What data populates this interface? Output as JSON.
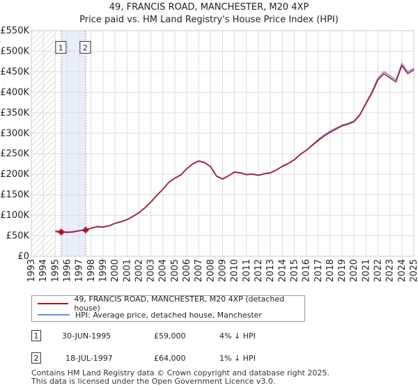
{
  "chart_data": {
    "type": "line",
    "title": "49, FRANCIS ROAD, MANCHESTER, M20 4XP",
    "subtitle": "Price paid vs. HM Land Registry's House Price Index (HPI)",
    "xlim": [
      1993,
      2025
    ],
    "ylim": [
      0,
      550000
    ],
    "y_ticks": [
      0,
      50000,
      100000,
      150000,
      200000,
      250000,
      300000,
      350000,
      400000,
      450000,
      500000,
      550000
    ],
    "y_tick_labels": [
      "£0",
      "£50K",
      "£100K",
      "£150K",
      "£200K",
      "£250K",
      "£300K",
      "£350K",
      "£400K",
      "£450K",
      "£500K",
      "£550K"
    ],
    "x_ticks": [
      1993,
      1994,
      1995,
      1996,
      1997,
      1998,
      1999,
      2000,
      2001,
      2002,
      2003,
      2004,
      2005,
      2006,
      2007,
      2008,
      2009,
      2010,
      2011,
      2012,
      2013,
      2014,
      2015,
      2016,
      2017,
      2018,
      2019,
      2020,
      2021,
      2022,
      2023,
      2024,
      2025
    ],
    "grid": true,
    "hatched_until": 1995.0,
    "shaded_range": [
      1995.5,
      1997.54
    ],
    "series": [
      {
        "name": "49, FRANCIS ROAD, MANCHESTER, M20 4XP (detached house)",
        "color": "#b0131f",
        "x": [
          1995.0,
          1995.5,
          1996.0,
          1996.5,
          1997.0,
          1997.54,
          1998.0,
          1998.5,
          1999.0,
          1999.5,
          2000.0,
          2000.5,
          2001.0,
          2001.5,
          2002.0,
          2002.5,
          2003.0,
          2003.5,
          2004.0,
          2004.5,
          2005.0,
          2005.5,
          2006.0,
          2006.5,
          2007.0,
          2007.5,
          2008.0,
          2008.5,
          2009.0,
          2009.5,
          2010.0,
          2010.5,
          2011.0,
          2011.5,
          2012.0,
          2012.5,
          2013.0,
          2013.5,
          2014.0,
          2014.5,
          2015.0,
          2015.5,
          2016.0,
          2016.5,
          2017.0,
          2017.5,
          2018.0,
          2018.5,
          2019.0,
          2019.5,
          2020.0,
          2020.5,
          2021.0,
          2021.5,
          2022.0,
          2022.5,
          2023.0,
          2023.5,
          2024.0,
          2024.5,
          2025.0
        ],
        "y": [
          60000,
          59000,
          58000,
          59000,
          62000,
          64000,
          68000,
          72000,
          71000,
          74000,
          80000,
          84000,
          89000,
          97000,
          106000,
          118000,
          132000,
          148000,
          163000,
          180000,
          190000,
          198000,
          213000,
          225000,
          232000,
          228000,
          218000,
          195000,
          188000,
          196000,
          205000,
          203000,
          199000,
          200000,
          197000,
          201000,
          203000,
          210000,
          219000,
          226000,
          235000,
          248000,
          258000,
          270000,
          282000,
          293000,
          302000,
          310000,
          318000,
          322000,
          328000,
          345000,
          372000,
          398000,
          430000,
          445000,
          435000,
          425000,
          465000,
          445000,
          455000
        ]
      },
      {
        "name": "HPI: Average price, detached house, Manchester",
        "color": "#6e8fd8",
        "x": [
          1995.0,
          1995.5,
          1996.0,
          1996.5,
          1997.0,
          1997.54,
          1998.0,
          1998.5,
          1999.0,
          1999.5,
          2000.0,
          2000.5,
          2001.0,
          2001.5,
          2002.0,
          2002.5,
          2003.0,
          2003.5,
          2004.0,
          2004.5,
          2005.0,
          2005.5,
          2006.0,
          2006.5,
          2007.0,
          2007.5,
          2008.0,
          2008.5,
          2009.0,
          2009.5,
          2010.0,
          2010.5,
          2011.0,
          2011.5,
          2012.0,
          2012.5,
          2013.0,
          2013.5,
          2014.0,
          2014.5,
          2015.0,
          2015.5,
          2016.0,
          2016.5,
          2017.0,
          2017.5,
          2018.0,
          2018.5,
          2019.0,
          2019.5,
          2020.0,
          2020.5,
          2021.0,
          2021.5,
          2022.0,
          2022.5,
          2023.0,
          2023.5,
          2024.0,
          2024.5,
          2025.0
        ],
        "y": [
          62000,
          61500,
          60000,
          60500,
          63000,
          64600,
          69000,
          73000,
          72000,
          75000,
          81000,
          85000,
          90000,
          98000,
          107000,
          119000,
          133000,
          149000,
          164000,
          181000,
          191000,
          199000,
          214000,
          226000,
          233000,
          229000,
          219000,
          196000,
          189000,
          197000,
          206000,
          204000,
          200000,
          201000,
          198000,
          202000,
          204000,
          211000,
          220000,
          227000,
          236000,
          249000,
          259000,
          272000,
          285000,
          296000,
          305000,
          313000,
          320000,
          324000,
          330000,
          347000,
          375000,
          402000,
          435000,
          450000,
          440000,
          430000,
          470000,
          450000,
          458000
        ]
      }
    ],
    "sales": [
      {
        "label": "1",
        "x": 1995.5,
        "y": 59000
      },
      {
        "label": "2",
        "x": 1997.54,
        "y": 64000
      }
    ],
    "annotation_top_value": 500000
  },
  "legend": {
    "series1": "49, FRANCIS ROAD, MANCHESTER, M20 4XP (detached house)",
    "series2": "HPI: Average price, detached house, Manchester"
  },
  "transactions": [
    {
      "num": "1",
      "date": "30-JUN-1995",
      "price": "£59,000",
      "hpi": "4% ↓ HPI"
    },
    {
      "num": "2",
      "date": "18-JUL-1997",
      "price": "£64,000",
      "hpi": "1% ↓ HPI"
    }
  ],
  "footer": {
    "line1": "Contains HM Land Registry data © Crown copyright and database right 2025.",
    "line2": "This data is licensed under the Open Government Licence v3.0."
  },
  "colors": {
    "red": "#b0131f",
    "blue": "#6e8fd8",
    "grid": "#dddddd",
    "shade": "#e8eefb"
  }
}
